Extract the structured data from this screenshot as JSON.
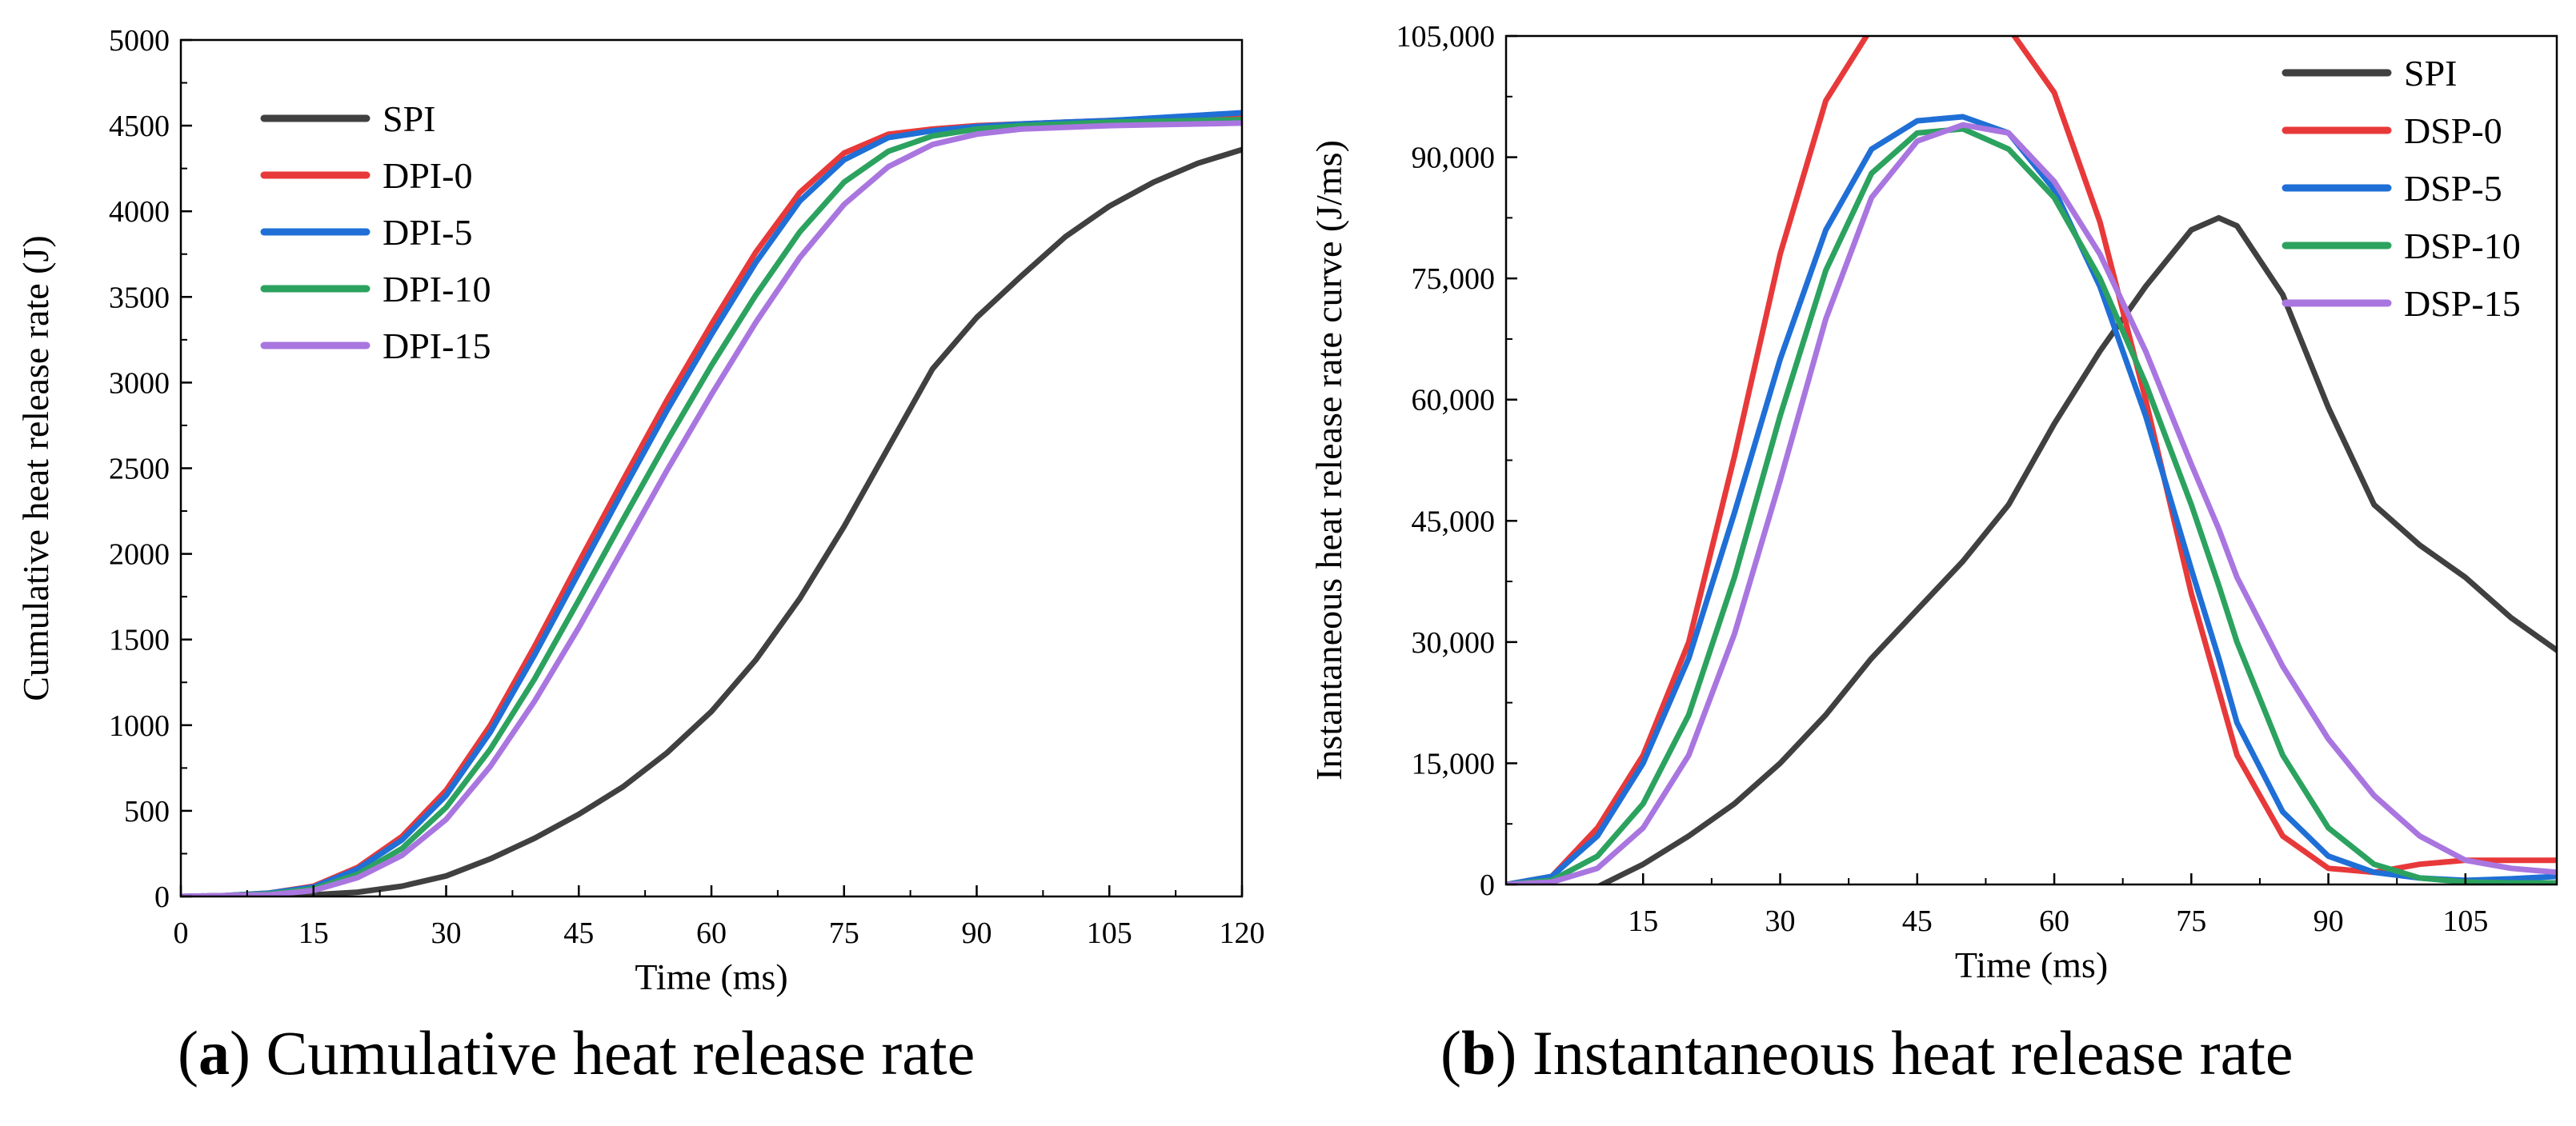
{
  "chart_data": [
    {
      "type": "line",
      "panel": "a",
      "caption_label": "a",
      "caption_text": "Cumulative heat release rate",
      "xlabel": "Time (ms)",
      "ylabel": "Cumulative heat release rate (J)",
      "xlim": [
        0,
        120
      ],
      "ylim": [
        0,
        5000
      ],
      "xticks": [
        0,
        15,
        30,
        45,
        60,
        75,
        90,
        105,
        120
      ],
      "yticks": [
        0,
        500,
        1000,
        1500,
        2000,
        2500,
        3000,
        3500,
        4000,
        4500,
        5000
      ],
      "xtick_labels": [
        "0",
        "15",
        "30",
        "45",
        "60",
        "75",
        "90",
        "105",
        "120"
      ],
      "ytick_labels": [
        "0",
        "500",
        "1000",
        "1500",
        "2000",
        "2500",
        "3000",
        "3500",
        "4000",
        "4500",
        "5000"
      ],
      "grid": false,
      "legend_position": "top-left",
      "x": [
        0,
        5,
        10,
        15,
        20,
        25,
        30,
        35,
        40,
        45,
        50,
        55,
        60,
        65,
        70,
        75,
        80,
        85,
        90,
        95,
        100,
        105,
        110,
        115,
        120
      ],
      "series": [
        {
          "name": "SPI",
          "color": "#404040",
          "values": [
            0,
            0,
            5,
            10,
            25,
            60,
            120,
            220,
            340,
            480,
            640,
            840,
            1080,
            1380,
            1740,
            2160,
            2620,
            3080,
            3380,
            3620,
            3850,
            4030,
            4170,
            4280,
            4360
          ]
        },
        {
          "name": "DPI-0",
          "color": "#e8393a",
          "values": [
            0,
            5,
            20,
            60,
            170,
            350,
            620,
            1000,
            1460,
            1950,
            2430,
            2900,
            3340,
            3760,
            4110,
            4340,
            4450,
            4480,
            4500,
            4510,
            4520,
            4530,
            4540,
            4550,
            4560
          ]
        },
        {
          "name": "DPI-5",
          "color": "#1f6fd6",
          "values": [
            0,
            5,
            20,
            55,
            160,
            330,
            590,
            960,
            1410,
            1890,
            2370,
            2840,
            3280,
            3700,
            4060,
            4300,
            4430,
            4470,
            4495,
            4510,
            4520,
            4530,
            4545,
            4560,
            4575
          ]
        },
        {
          "name": "DPI-10",
          "color": "#2ca25f",
          "values": [
            0,
            5,
            15,
            45,
            130,
            280,
            520,
            860,
            1270,
            1730,
            2200,
            2660,
            3100,
            3510,
            3880,
            4170,
            4350,
            4440,
            4480,
            4500,
            4510,
            4520,
            4525,
            4530,
            4535
          ]
        },
        {
          "name": "DPI-15",
          "color": "#a976e0",
          "values": [
            0,
            5,
            10,
            35,
            110,
            240,
            450,
            760,
            1140,
            1570,
            2030,
            2490,
            2930,
            3350,
            3730,
            4040,
            4260,
            4390,
            4450,
            4480,
            4490,
            4500,
            4505,
            4510,
            4515
          ]
        }
      ]
    },
    {
      "type": "line",
      "panel": "b",
      "caption_label": "b",
      "caption_text": "Instantaneous heat release rate",
      "xlabel": "Time (ms)",
      "ylabel": "Instantaneous heat release rate curve (J/ms)",
      "xlim": [
        0,
        115
      ],
      "ylim": [
        0,
        105000
      ],
      "xticks": [
        15,
        30,
        45,
        60,
        75,
        90,
        105
      ],
      "yticks": [
        0,
        15000,
        30000,
        45000,
        60000,
        75000,
        90000,
        105000
      ],
      "xtick_labels": [
        "15",
        "30",
        "45",
        "60",
        "75",
        "90",
        "105"
      ],
      "ytick_labels": [
        "0",
        "15,000",
        "30,000",
        "45,000",
        "60,000",
        "75,000",
        "90,000",
        "105,000"
      ],
      "grid": false,
      "legend_position": "top-right",
      "x": [
        0,
        5,
        10,
        15,
        20,
        25,
        30,
        35,
        40,
        45,
        50,
        55,
        60,
        65,
        70,
        75,
        78,
        80,
        85,
        90,
        95,
        100,
        105,
        110,
        115
      ],
      "series": [
        {
          "name": "SPI",
          "color": "#404040",
          "values": [
            0,
            -500,
            -300,
            2500,
            6000,
            10000,
            15000,
            21000,
            28000,
            34000,
            40000,
            47000,
            57000,
            66000,
            74000,
            81000,
            82500,
            81500,
            73000,
            59000,
            47000,
            42000,
            38000,
            33000,
            29000
          ]
        },
        {
          "name": "DSP-0",
          "color": "#e8393a",
          "values": [
            0,
            1000,
            7000,
            16000,
            30000,
            53000,
            78000,
            97000,
            106000,
            108000,
            108000,
            106000,
            98000,
            82000,
            60000,
            36000,
            24000,
            16000,
            6000,
            2000,
            1500,
            2500,
            3000,
            3000,
            3000
          ]
        },
        {
          "name": "DSP-5",
          "color": "#1f6fd6",
          "values": [
            0,
            1000,
            6000,
            15000,
            28000,
            46000,
            65000,
            81000,
            91000,
            94500,
            95000,
            93000,
            86000,
            74000,
            58000,
            39000,
            28000,
            20000,
            9000,
            3500,
            1500,
            800,
            500,
            700,
            1000
          ]
        },
        {
          "name": "DSP-10",
          "color": "#2ca25f",
          "values": [
            0,
            500,
            3500,
            10000,
            21000,
            38000,
            58000,
            76000,
            88000,
            93000,
            93500,
            91000,
            85000,
            75000,
            62000,
            47000,
            37000,
            30000,
            16000,
            7000,
            2500,
            800,
            300,
            200,
            200
          ]
        },
        {
          "name": "DSP-15",
          "color": "#a976e0",
          "values": [
            0,
            300,
            2000,
            7000,
            16000,
            31000,
            50000,
            70000,
            85000,
            92000,
            94000,
            93000,
            87000,
            78000,
            66000,
            52000,
            44000,
            38000,
            27000,
            18000,
            11000,
            6000,
            3000,
            2000,
            1500
          ]
        }
      ]
    }
  ]
}
